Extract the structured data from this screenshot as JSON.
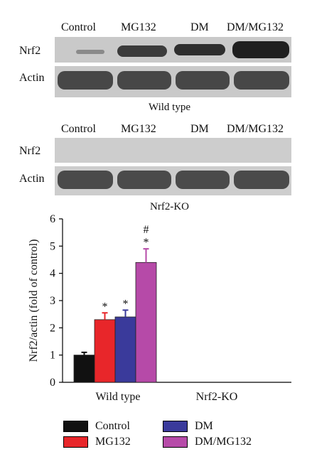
{
  "blots": {
    "top": {
      "lanes": [
        "Control",
        "MG132",
        "DM",
        "DM/MG132"
      ],
      "rows": [
        "Nrf2",
        "Actin"
      ],
      "caption": "Wild type"
    },
    "bottom": {
      "lanes": [
        "Control",
        "MG132",
        "DM",
        "DM/MG132"
      ],
      "rows": [
        "Nrf2",
        "Actin"
      ],
      "caption": "Nrf2-KO"
    }
  },
  "chart_data": {
    "type": "bar",
    "categories": [
      "Wild type",
      "Nrf2-KO"
    ],
    "ylabel": "Nrf2/actin (fold of control)",
    "ylim": [
      0,
      6
    ],
    "yticks": [
      "0",
      "1",
      "2",
      "3",
      "4",
      "5",
      "6"
    ],
    "series": [
      {
        "name": "Control",
        "color": "#111111",
        "values": [
          1.0,
          null
        ],
        "errors": [
          0.1,
          null
        ],
        "annotation": [
          "",
          ""
        ]
      },
      {
        "name": "MG132",
        "color": "#e8262a",
        "values": [
          2.3,
          null
        ],
        "errors": [
          0.25,
          null
        ],
        "annotation": [
          "*",
          ""
        ]
      },
      {
        "name": "DM",
        "color": "#3a3a9b",
        "values": [
          2.4,
          null
        ],
        "errors": [
          0.25,
          null
        ],
        "annotation": [
          "*",
          ""
        ]
      },
      {
        "name": "DM/MG132",
        "color": "#b64aa8",
        "values": [
          4.4,
          null
        ],
        "errors": [
          0.5,
          null
        ],
        "annotation": [
          "*\n#",
          ""
        ]
      }
    ],
    "legend": [
      "Control",
      "MG132",
      "DM",
      "DM/MG132"
    ]
  }
}
